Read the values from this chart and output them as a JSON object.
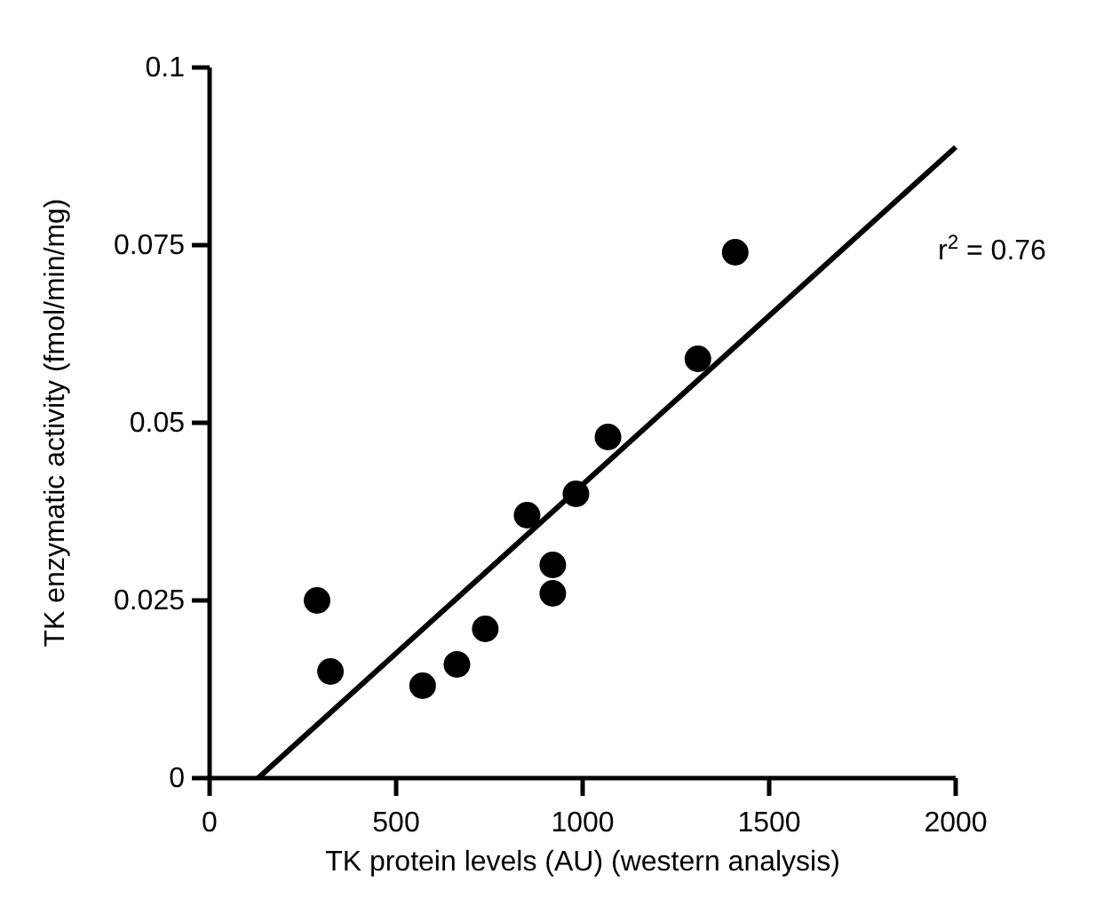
{
  "chart_data": {
    "type": "scatter",
    "xlabel": "TK protein levels (AU) (western analysis)",
    "ylabel": "TK enzymatic activity (fmol/min/mg)",
    "xlim": [
      0,
      2000
    ],
    "xticks": [
      0,
      500,
      1000,
      1500,
      2000
    ],
    "ylim": [
      0,
      0.1
    ],
    "yticks": [
      0,
      0.025,
      0.05,
      0.075,
      0.1
    ],
    "grid": false,
    "series": [
      {
        "marker": "circle",
        "color": "#000000",
        "x": [
          288,
          324,
          571,
          663,
          739,
          851,
          920,
          920,
          982,
          1068,
          1309,
          1409
        ],
        "values": [
          0.025,
          0.015,
          0.013,
          0.016,
          0.021,
          0.037,
          0.03,
          0.026,
          0.04,
          0.048,
          0.059,
          0.074
        ]
      },
      {
        "type": "line",
        "marker": "none",
        "color": "#000000",
        "x": [
          130,
          2000
        ],
        "values": [
          0,
          0.0888
        ]
      }
    ],
    "annotations": [
      "r$^{2}$ = 0.76"
    ]
  }
}
